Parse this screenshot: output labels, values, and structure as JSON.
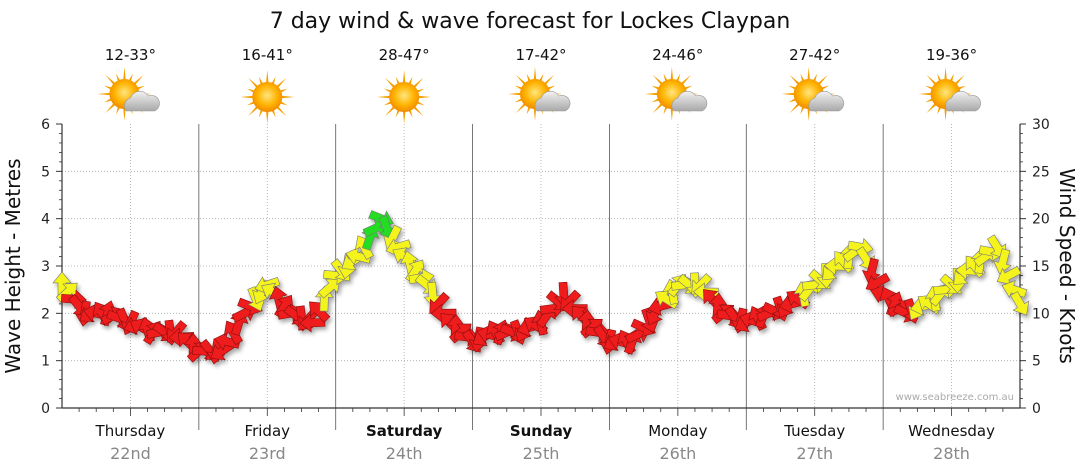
{
  "chart_data": {
    "type": "line",
    "title": "7 day wind & wave forecast for Lockes Claypan",
    "ylabel_left": "Wave Height - Metres",
    "ylabel_right": "Wind Speed - Knots",
    "ylim_left": [
      0,
      6
    ],
    "ylim_right": [
      0,
      30
    ],
    "yticks_left": [
      "0",
      "1",
      "2",
      "3",
      "4",
      "5",
      "6"
    ],
    "yticks_right": [
      "0",
      "5",
      "10",
      "15",
      "20",
      "25",
      "30"
    ],
    "grid": true,
    "watermark": "www.seabreeze.com.au",
    "days": [
      {
        "name": "Thursday",
        "date": "22nd",
        "bold": false,
        "temp": "12-33°",
        "weather": "partly-cloudy"
      },
      {
        "name": "Friday",
        "date": "23rd",
        "bold": false,
        "temp": "16-41°",
        "weather": "sunny"
      },
      {
        "name": "Saturday",
        "date": "24th",
        "bold": true,
        "temp": "28-47°",
        "weather": "sunny"
      },
      {
        "name": "Sunday",
        "date": "25th",
        "bold": true,
        "temp": "17-42°",
        "weather": "partly-cloudy"
      },
      {
        "name": "Monday",
        "date": "26th",
        "bold": false,
        "temp": "24-46°",
        "weather": "partly-cloudy"
      },
      {
        "name": "Tuesday",
        "date": "27th",
        "bold": false,
        "temp": "27-42°",
        "weather": "partly-cloudy"
      },
      {
        "name": "Wednesday",
        "date": "28th",
        "bold": false,
        "temp": "19-36°",
        "weather": "partly-cloudy"
      }
    ],
    "colors": {
      "red": "#ee1c1c",
      "yellow": "#f4f41c",
      "green": "#22dd22"
    },
    "series": [
      {
        "name": "Wind",
        "x_hours": [
          0,
          4,
          8,
          12,
          16,
          20,
          24,
          28,
          32,
          36,
          40,
          44,
          48,
          52,
          56,
          60,
          64,
          68,
          72,
          76,
          80,
          84,
          88,
          92,
          96,
          100,
          104,
          108,
          112,
          116,
          120,
          124,
          128,
          132,
          136,
          140,
          144,
          148,
          152,
          156,
          160,
          164,
          168
        ],
        "values": [
          13,
          10,
          10,
          9,
          8,
          8,
          6,
          6,
          10,
          13,
          10,
          9,
          14,
          16,
          20,
          16,
          13,
          9,
          7,
          8,
          8,
          9,
          12,
          9,
          7,
          7,
          10,
          13,
          13,
          10,
          9,
          10,
          11,
          13,
          15,
          17,
          12,
          10,
          11,
          13,
          15,
          17,
          11
        ],
        "colors": [
          "yellow",
          "red",
          "red",
          "red",
          "red",
          "red",
          "red",
          "red",
          "red",
          "yellow",
          "red",
          "red",
          "yellow",
          "yellow",
          "green",
          "yellow",
          "yellow",
          "red",
          "red",
          "red",
          "red",
          "red",
          "red",
          "red",
          "red",
          "red",
          "red",
          "yellow",
          "yellow",
          "red",
          "red",
          "red",
          "red",
          "yellow",
          "yellow",
          "yellow",
          "red",
          "red",
          "yellow",
          "yellow",
          "yellow",
          "yellow",
          "yellow"
        ]
      }
    ]
  }
}
